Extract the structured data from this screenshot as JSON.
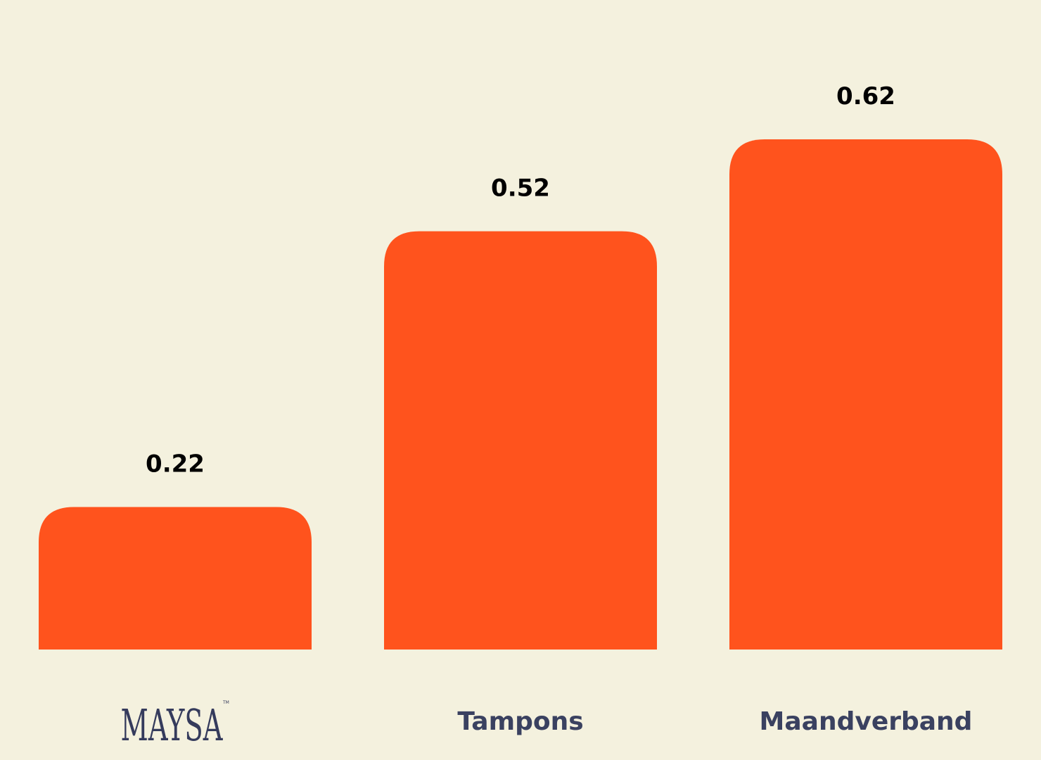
{
  "chart_data": {
    "type": "bar",
    "title": "",
    "xlabel": "",
    "ylabel": "",
    "categories": [
      "MAYSA",
      "Tampons",
      "Maandverband"
    ],
    "category_is_logo": [
      true,
      false,
      false
    ],
    "values": [
      0.22,
      0.52,
      0.62
    ],
    "data_labels": [
      "0.22",
      "0.52",
      "0.62"
    ],
    "ylim": [
      0.065,
      0.62
    ],
    "grid": false,
    "axes_visible": false,
    "colors": {
      "bar": "#ff531d",
      "background": "#f4f1de",
      "category_label": "#3a4160",
      "value_label": "#000000"
    }
  }
}
